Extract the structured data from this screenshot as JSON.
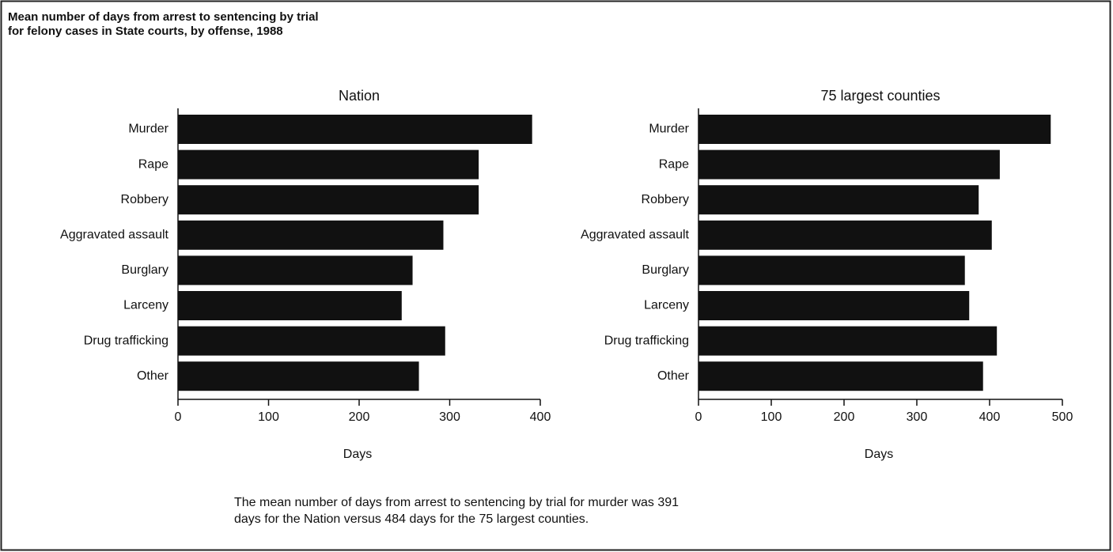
{
  "title": [
    "Mean number of days from arrest to sentencing by trial",
    "for felony cases in State courts, by offense, 1988"
  ],
  "caption": [
    "The mean number of days from arrest to sentencing by trial for murder was 391",
    "days for the Nation versus 484 days for the 75 largest counties."
  ],
  "chart_data": [
    {
      "type": "bar",
      "orientation": "horizontal",
      "title": "Nation",
      "categories": [
        "Murder",
        "Rape",
        "Robbery",
        "Aggravated assault",
        "Burglary",
        "Larceny",
        "Drug trafficking",
        "Other"
      ],
      "values": [
        391,
        332,
        332,
        293,
        259,
        247,
        295,
        266
      ],
      "color": "#111111",
      "xlabel": "Days",
      "xlim": [
        0,
        400
      ],
      "xticks": [
        0,
        100,
        200,
        300,
        400
      ]
    },
    {
      "type": "bar",
      "orientation": "horizontal",
      "title": "75 largest counties",
      "categories": [
        "Murder",
        "Rape",
        "Robbery",
        "Aggravated assault",
        "Burglary",
        "Larceny",
        "Drug trafficking",
        "Other"
      ],
      "values": [
        484,
        414,
        385,
        403,
        366,
        372,
        410,
        391
      ],
      "color": "#111111",
      "xlabel": "Days",
      "xlim": [
        0,
        500
      ],
      "xticks": [
        0,
        100,
        200,
        300,
        400,
        500
      ]
    }
  ]
}
